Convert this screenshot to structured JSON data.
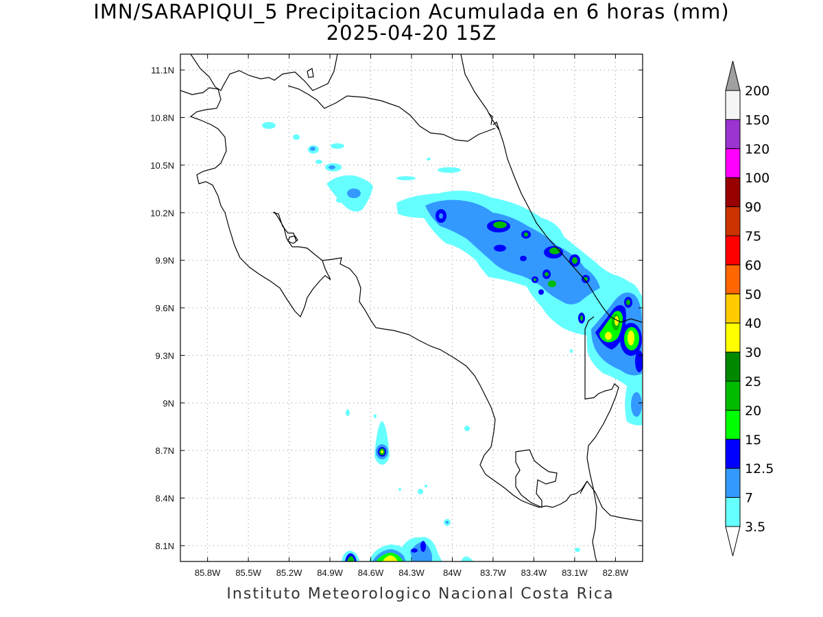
{
  "title": {
    "line1": "IMN/SARAPIQUI_5 Precipitacion Acumulada en 6 horas (mm)",
    "line2": "2025-04-20 15Z"
  },
  "footer": "Instituto Meteorologico Nacional Costa Rica",
  "map": {
    "lon_range": [
      -86.0,
      -82.6
    ],
    "lat_range": [
      8.0,
      11.2
    ],
    "lon_ticks": [
      "85.8W",
      "85.5W",
      "85.2W",
      "84.9W",
      "84.6W",
      "84.3W",
      "84W",
      "83.7W",
      "83.4W",
      "83.1W",
      "82.8W"
    ],
    "lat_ticks": [
      "11.1N",
      "10.8N",
      "10.5N",
      "10.2N",
      "9.9N",
      "9.6N",
      "9.3N",
      "9N",
      "8.7N",
      "8.4N",
      "8.1N"
    ]
  },
  "colorbar": {
    "labels": [
      "200",
      "150",
      "120",
      "100",
      "90",
      "75",
      "60",
      "50",
      "40",
      "30",
      "25",
      "20",
      "15",
      "12.5",
      "7",
      "3.5"
    ],
    "colors": [
      "#f5f5f5",
      "#9a35d0",
      "#ff00ff",
      "#990000",
      "#cc3300",
      "#ff0000",
      "#ff6600",
      "#ffcc00",
      "#ffff00",
      "#008800",
      "#00bb00",
      "#00ff00",
      "#0000ff",
      "#3399ff",
      "#66ffff"
    ],
    "overflow_color": "#a0a0a0",
    "underflow_color": "#ffffff"
  }
}
